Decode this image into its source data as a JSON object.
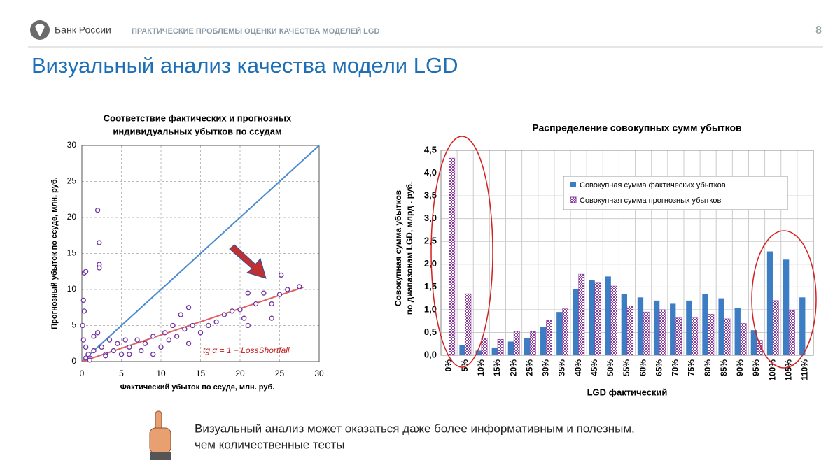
{
  "header": {
    "org": "Банк России",
    "section": "ПРАКТИЧЕСКИЕ ПРОБЛЕМЫ ОЦЕНКИ КАЧЕСТВА МОДЕЛЕЙ LGD",
    "page": "8"
  },
  "title": "Визуальный анализ качества модели LGD",
  "note": [
    "Визуальный анализ может оказаться даже более информативным и полезным,",
    "чем количественные тесты"
  ],
  "chart_data": [
    {
      "type": "scatter",
      "title": [
        "Соответствие фактических и прогнозных",
        "индивидуальных убытков  по ссудам"
      ],
      "x_label": "Фактический убыток по ссуде, млн. руб.",
      "y_label": "Прогнозный убыток по ссуде, млн. руб.",
      "annotation": "tg α = 1 − LossShortfall",
      "xlim": [
        0,
        30
      ],
      "ylim": [
        0,
        30
      ],
      "xticks": [
        0,
        5,
        10,
        15,
        20,
        25,
        30
      ],
      "yticks": [
        0,
        5,
        10,
        15,
        20,
        25,
        30
      ],
      "grid": true,
      "points": {
        "color": "#7030a0",
        "x": [
          0.2,
          0.3,
          0.5,
          0.1,
          0.2,
          0.5,
          0.8,
          1,
          1.5,
          2,
          2.2,
          2.2,
          2.2,
          2,
          2.5,
          3,
          3.5,
          4,
          4.5,
          5,
          5.5,
          6,
          7,
          7.5,
          8,
          9,
          10,
          10.5,
          11,
          12,
          13,
          13.5,
          14,
          15,
          16,
          17,
          18,
          19,
          20,
          20.5,
          21,
          22,
          21,
          23,
          24,
          25,
          25.2,
          24,
          26,
          27.5,
          13.5,
          12.5,
          11.5,
          1,
          0.5,
          3,
          6,
          9,
          1.5,
          0.3
        ],
        "values": [
          8.5,
          12.3,
          12.5,
          5,
          3,
          2,
          1,
          0.5,
          1.5,
          21,
          16.5,
          13.5,
          13,
          4,
          2,
          1,
          3,
          1.5,
          2.5,
          1,
          3,
          2,
          3,
          1.5,
          2.5,
          3.5,
          2,
          4,
          3,
          3.5,
          4.5,
          2.5,
          5,
          4,
          5,
          5.5,
          6.5,
          7,
          7.2,
          6,
          5,
          8,
          9.5,
          9.5,
          8,
          9.3,
          12,
          6,
          10,
          10.4,
          7.5,
          6.5,
          5,
          0.2,
          0.5,
          0.8,
          1,
          1,
          3.5,
          7
        ]
      },
      "lines": [
        {
          "color": "#4a8ad0",
          "x": [
            0,
            30
          ],
          "values": [
            0,
            30
          ]
        },
        {
          "color": "#e06060",
          "x": [
            0,
            28
          ],
          "values": [
            0,
            10.3
          ]
        }
      ]
    },
    {
      "type": "bar",
      "title": "Распределение совокупных сумм убытков",
      "x_label": "LGD фактический",
      "y_label": [
        "Совокупная  сумма  убытков",
        "по диапазонам LGD, млрд . руб."
      ],
      "categories": [
        "0%",
        "5%",
        "10%",
        "15%",
        "20%",
        "25%",
        "30%",
        "35%",
        "40%",
        "45%",
        "50%",
        "55%",
        "60%",
        "65%",
        "70%",
        "75%",
        "80%",
        "85%",
        "90%",
        "95%",
        "100%",
        "105%",
        "110%"
      ],
      "series": [
        {
          "name": "Совокупная сумма фактических убытков",
          "color": "#3c7dc4",
          "values": [
            0,
            0.22,
            0.1,
            0.17,
            0.3,
            0.38,
            0.63,
            0.95,
            1.45,
            1.65,
            1.73,
            1.35,
            1.27,
            1.2,
            1.13,
            1.2,
            1.35,
            1.25,
            1.03,
            0.55,
            2.28,
            2.1,
            1.27
          ]
        },
        {
          "name": "Совокупная сумма прогнозных убытков",
          "color": "#8a3a9c",
          "values": [
            4.33,
            1.35,
            0.37,
            0.35,
            0.52,
            0.52,
            0.77,
            1.02,
            1.78,
            1.6,
            1.52,
            1.08,
            0.95,
            1.0,
            0.82,
            0.82,
            0.9,
            0.8,
            0.7,
            0.33,
            1.2,
            0.98,
            null
          ]
        }
      ],
      "ylim": [
        0,
        4.5
      ],
      "yticks": [
        {
          "value": 0,
          "label": "0,0"
        },
        {
          "value": 0.5,
          "label": "0,5"
        },
        {
          "value": 1,
          "label": "1,0"
        },
        {
          "value": 1.5,
          "label": "1,5"
        },
        {
          "value": 2,
          "label": "2,0"
        },
        {
          "value": 2.5,
          "label": "2,5"
        },
        {
          "value": 3,
          "label": "3,0"
        },
        {
          "value": 3.5,
          "label": "3,5"
        },
        {
          "value": 4,
          "label": "4,0"
        },
        {
          "value": 4.5,
          "label": "4,5"
        }
      ],
      "grid": true,
      "legend": "upper right"
    }
  ]
}
